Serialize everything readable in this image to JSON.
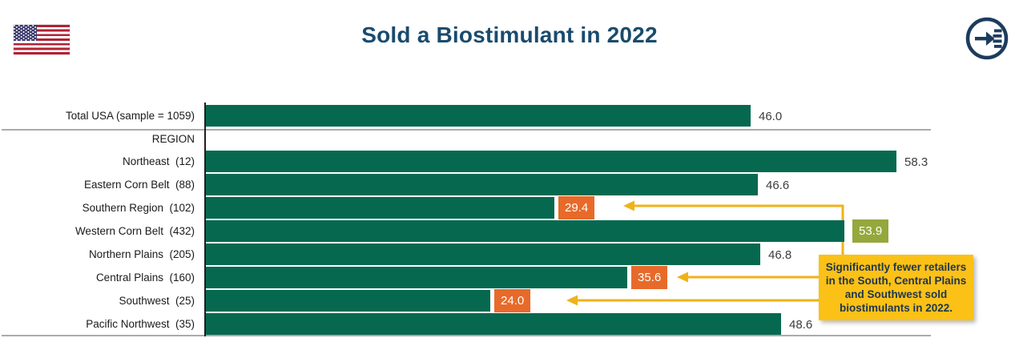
{
  "header": {
    "title": "Sold a Biostimulant in 2022",
    "flag_alt": "usa-flag",
    "corner_icon": "enter-arrow-list-icon"
  },
  "chart_data": {
    "type": "bar",
    "orientation": "horizontal",
    "title": "Sold a Biostimulant in 2022",
    "section_label": "REGION",
    "categories": [
      "Total USA (sample = 1059)",
      "Northeast  (12)",
      "Eastern Corn Belt  (88)",
      "Southern Region  (102)",
      "Western Corn Belt  (432)",
      "Northern Plains  (205)",
      "Central Plains  (160)",
      "Southwest  (25)",
      "Pacific Northwest  (35)"
    ],
    "values": [
      46.0,
      58.3,
      46.6,
      29.4,
      53.9,
      46.8,
      35.6,
      24.0,
      48.6
    ],
    "value_styles": [
      "plain",
      "plain",
      "plain",
      "low",
      "high",
      "plain",
      "low",
      "low",
      "plain"
    ],
    "xlim": [
      0,
      61.5
    ],
    "grid": "top-and-bottom-rule-only",
    "legend": "none",
    "colors": {
      "bar": "#06694F",
      "low": "#E76A2A",
      "high": "#94A83D",
      "annotation_bg": "#FBC116",
      "arrow": "#EFB219",
      "title": "#1A4B6D",
      "icon": "#1C3C5E"
    }
  },
  "annotation": {
    "text": "Significantly fewer retailers in the South, Central Plains and Southwest sold biostimulants in 2022.",
    "lines": [
      "Significantly fewer retailers",
      "in the South, Central Plains",
      "and Southwest sold",
      "biostimulants in 2022."
    ]
  }
}
